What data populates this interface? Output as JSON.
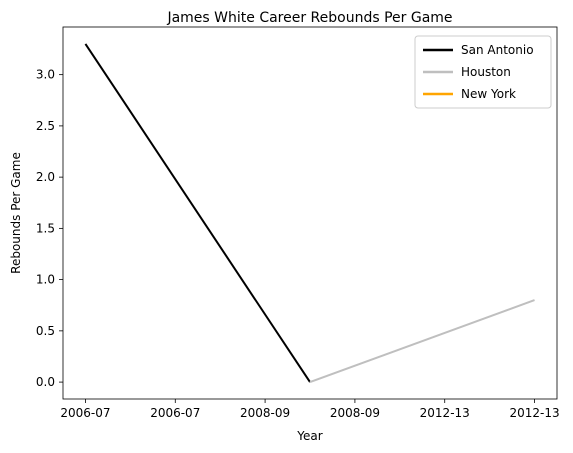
{
  "chart_data": {
    "type": "line",
    "title": "James White  Career Rebounds Per Game",
    "xlabel": "Year",
    "ylabel": "Rebounds Per Game",
    "x_tick_labels": [
      "2006-07",
      "2006-07",
      "2008-09",
      "2008-09",
      "2012-13",
      "2012-13"
    ],
    "x_tick_values": [
      0,
      0.2,
      0.4,
      0.6,
      0.8,
      1.0
    ],
    "xlim": [
      -0.05,
      1.05
    ],
    "y_ticks": [
      0.0,
      0.5,
      1.0,
      1.5,
      2.0,
      2.5,
      3.0
    ],
    "ylim": [
      -0.165,
      3.465
    ],
    "grid": false,
    "legend_position": "top-right",
    "series": [
      {
        "name": "San Antonio",
        "color": "#000000",
        "x": [
          0,
          0.5
        ],
        "y": [
          3.3,
          0.0
        ]
      },
      {
        "name": "Houston",
        "color": "#bfbfbf",
        "x": [
          0.5,
          1.0
        ],
        "y": [
          0.0,
          0.8
        ]
      },
      {
        "name": "New York",
        "color": "#ffa500",
        "x": [],
        "y": []
      }
    ]
  }
}
